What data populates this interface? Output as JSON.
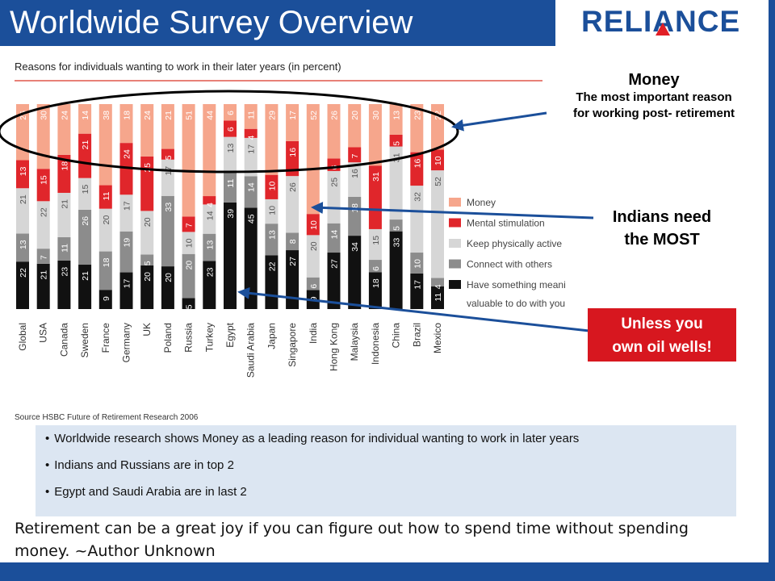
{
  "slide": {
    "title": "Worldwide Survey Overview",
    "logo_text": "RELIANCE",
    "colors": {
      "bar": "#1b4f9a",
      "accent_red": "#d7171f",
      "notes_bg": "#dce6f2"
    }
  },
  "chart_data": {
    "type": "bar",
    "stacked": true,
    "title": "Reasons for individuals wanting to work in their later years (in percent)",
    "source": "Source HSBC Future of Retirement Research 2006",
    "categories": [
      "Global",
      "USA",
      "Canada",
      "Sweden",
      "France",
      "Germany",
      "UK",
      "Poland",
      "Russia",
      "Turkey",
      "Egypt",
      "Saudi Arabia",
      "Japan",
      "Singapore",
      "India",
      "Hong Kong",
      "Malaysia",
      "Indonesia",
      "China",
      "Brazil",
      "Mexico"
    ],
    "series": [
      {
        "name": "Have something meaningful / valuable to do with your time",
        "color": "#111111",
        "values": [
          22,
          21,
          23,
          21,
          9,
          17,
          20,
          20,
          5,
          23,
          39,
          45,
          22,
          27,
          9,
          27,
          34,
          18,
          33,
          17,
          11
        ]
      },
      {
        "name": "Connect with others",
        "color": "#8c8c8c",
        "values": [
          13,
          7,
          11,
          26,
          18,
          19,
          5,
          33,
          20,
          13,
          11,
          14,
          13,
          8,
          6,
          14,
          18,
          6,
          5,
          10,
          4
        ]
      },
      {
        "name": "Keep physically active",
        "color": "#d6d6d6",
        "values": [
          21,
          22,
          21,
          15,
          20,
          17,
          20,
          17,
          10,
          14,
          13,
          17,
          10,
          26,
          20,
          25,
          16,
          15,
          31,
          32,
          52
        ]
      },
      {
        "name": "Mental stimulation",
        "color": "#e0262b",
        "values": [
          13,
          15,
          18,
          21,
          11,
          24,
          25,
          5,
          7,
          4,
          6,
          4,
          10,
          16,
          10,
          6,
          7,
          31,
          5,
          16,
          10
        ]
      },
      {
        "name": "Money",
        "color": "#f6a68c",
        "values": [
          26,
          30,
          24,
          14,
          38,
          18,
          24,
          21,
          51,
          44,
          6,
          11,
          29,
          17,
          52,
          26,
          20,
          30,
          13,
          23,
          22
        ]
      }
    ],
    "ylim": [
      0,
      100
    ],
    "legend_position": "right"
  },
  "callouts": {
    "money_title": "Money",
    "money_line1": "The most important reason",
    "money_line2": "for working post- retirement",
    "india_line1": "Indians need",
    "india_line2": "the MOST",
    "oil_line1": "Unless you",
    "oil_line2": "own oil wells!"
  },
  "notes": [
    "Worldwide research shows Money as a leading reason for individual wanting to work in later years",
    "Indians and Russians are in top 2",
    "Egypt and Saudi Arabia are in last 2"
  ],
  "quote_line1": "Retirement can be a great joy if you can figure out how to spend time without spending",
  "quote_line2": "money. ~Author Unknown"
}
